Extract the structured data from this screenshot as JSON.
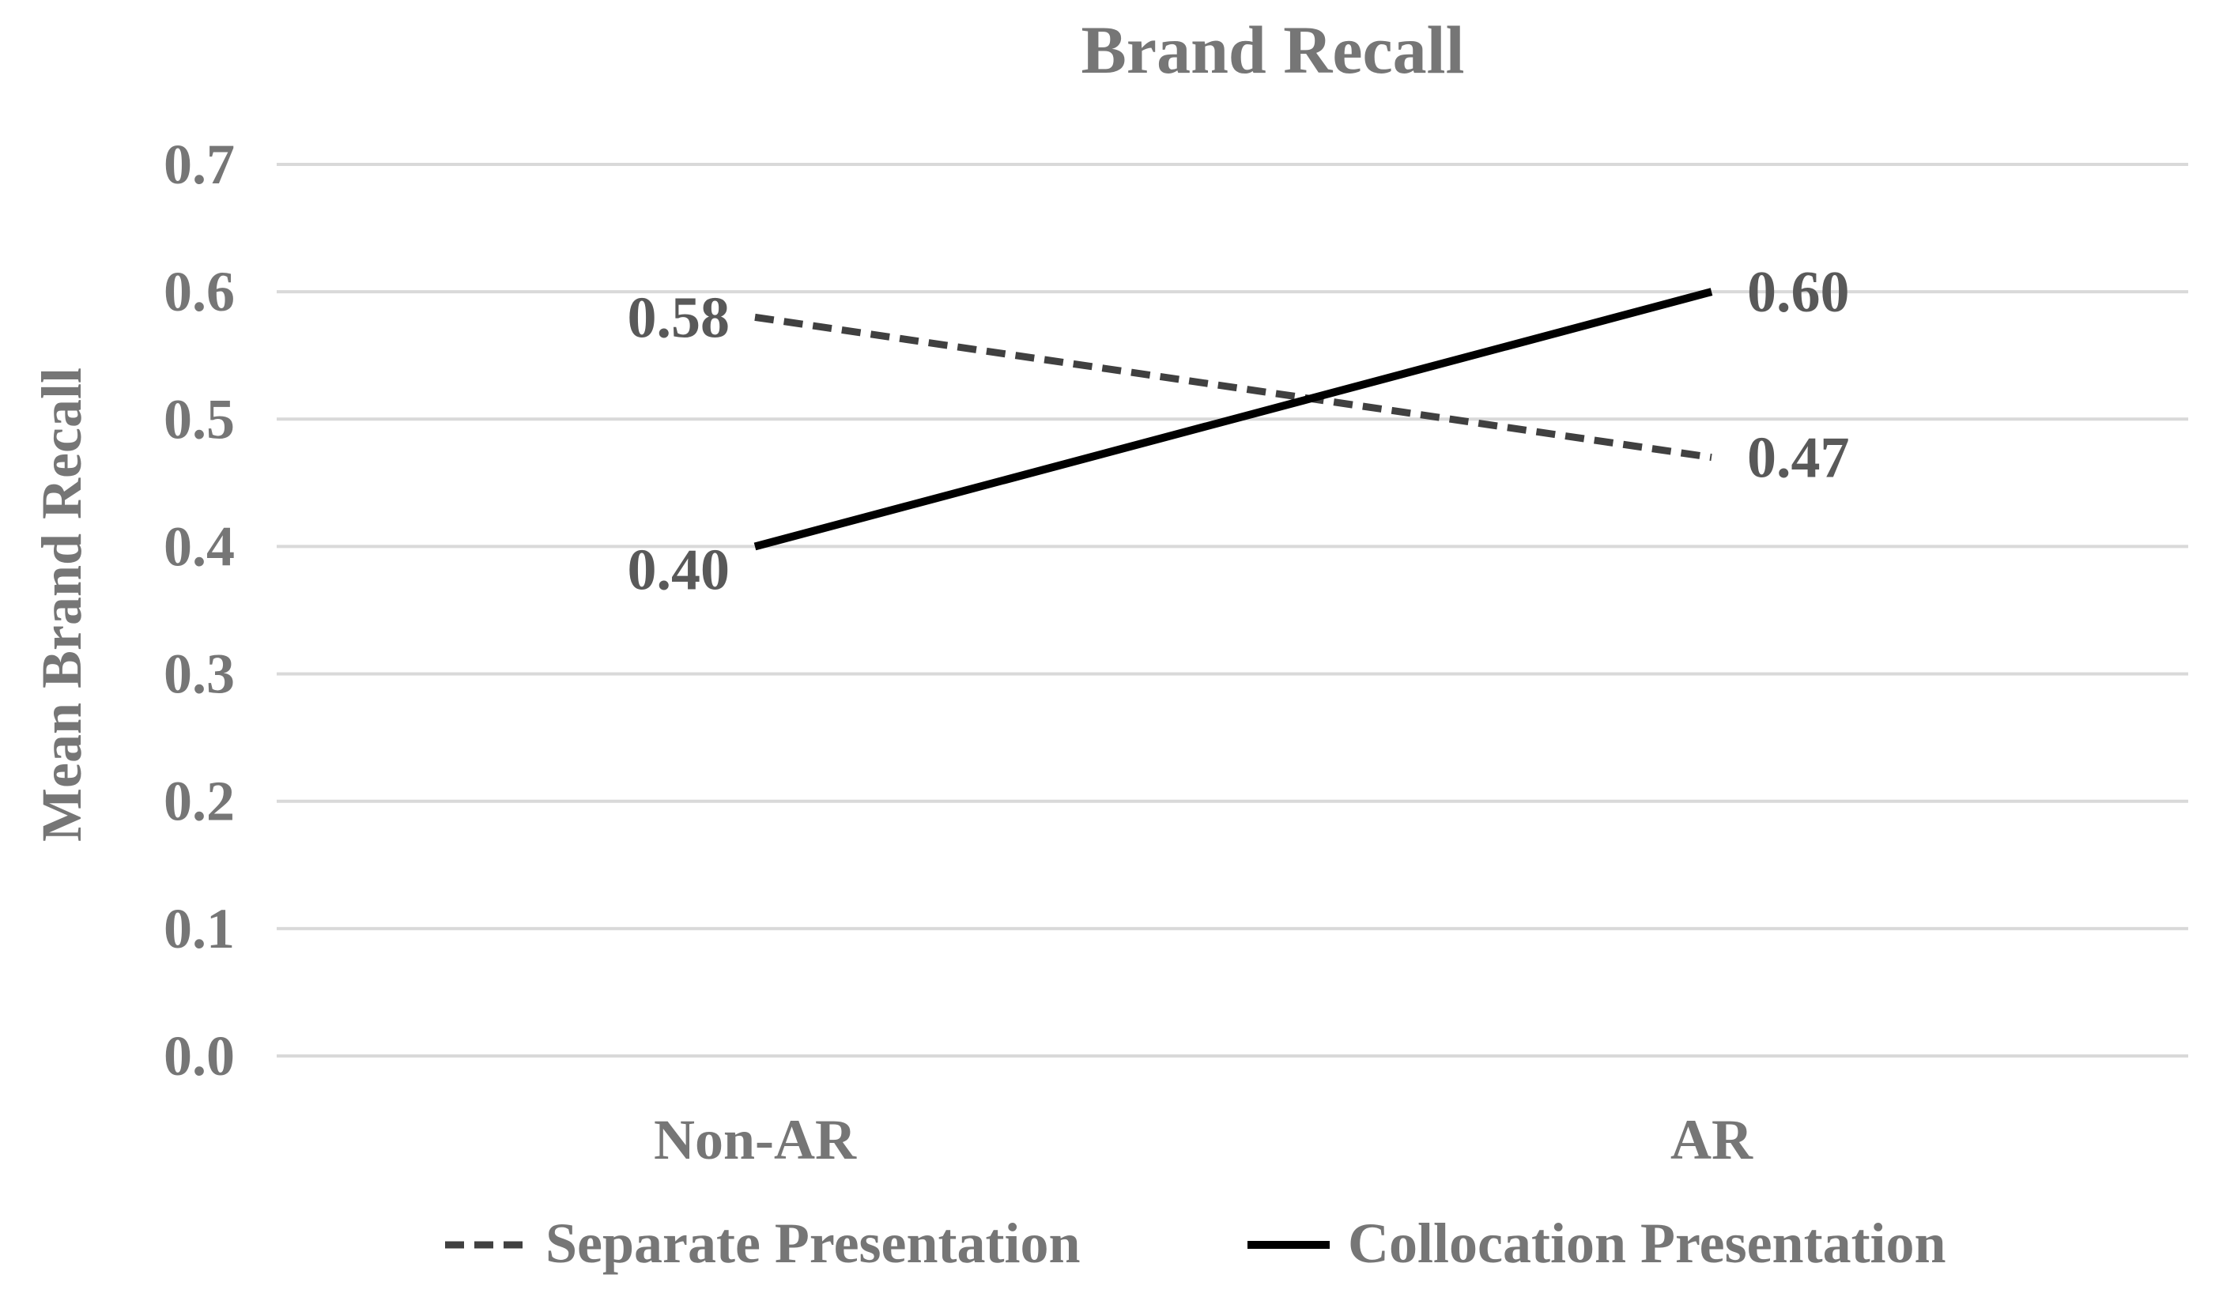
{
  "chart_data": {
    "type": "line",
    "title": "Brand Recall",
    "xlabel": "",
    "ylabel": "Mean Brand Recall",
    "categories": [
      "Non-AR",
      "AR"
    ],
    "ylim": [
      0,
      0.7
    ],
    "yticks": [
      "0.0",
      "0.1",
      "0.2",
      "0.3",
      "0.4",
      "0.5",
      "0.6",
      "0.7"
    ],
    "grid": true,
    "legend_position": "bottom",
    "series": [
      {
        "name": "Separate Presentation",
        "values": [
          0.58,
          0.47
        ],
        "labels": [
          "0.58",
          "0.47"
        ],
        "style": "dashed",
        "color": "#404040"
      },
      {
        "name": "Collocation Presentation",
        "values": [
          0.4,
          0.6
        ],
        "labels": [
          "0.40",
          "0.60"
        ],
        "style": "solid",
        "color": "#000000"
      }
    ]
  }
}
